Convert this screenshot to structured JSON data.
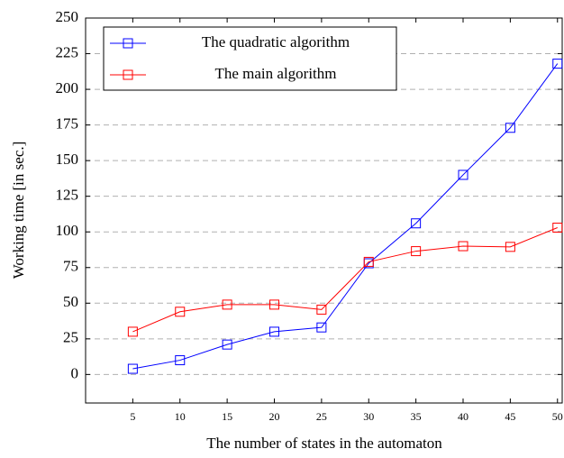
{
  "chart_data": {
    "type": "line",
    "x_label": "The number of states in the automaton",
    "y_label": "Working time [in sec.]",
    "x": [
      5,
      10,
      15,
      20,
      25,
      30,
      35,
      40,
      45,
      50
    ],
    "series": [
      {
        "name": "The quadratic algorithm",
        "color": "#0000ff",
        "values": [
          4,
          10,
          21,
          30,
          33,
          78,
          106,
          140,
          173,
          218
        ]
      },
      {
        "name": "The main algorithm",
        "color": "#ff0000",
        "values": [
          30,
          44,
          49,
          49,
          45.5,
          79,
          86.5,
          90,
          89.5,
          103
        ]
      }
    ],
    "xlim": [
      0,
      50.5
    ],
    "xticks": [
      5,
      10,
      15,
      20,
      25,
      30,
      35,
      40,
      45,
      50
    ],
    "ylim": [
      -20,
      250
    ],
    "yticks": [
      0,
      25,
      50,
      75,
      100,
      125,
      150,
      175,
      200,
      225,
      250
    ],
    "grid": true,
    "legend": "upper left",
    "marker": "square"
  }
}
